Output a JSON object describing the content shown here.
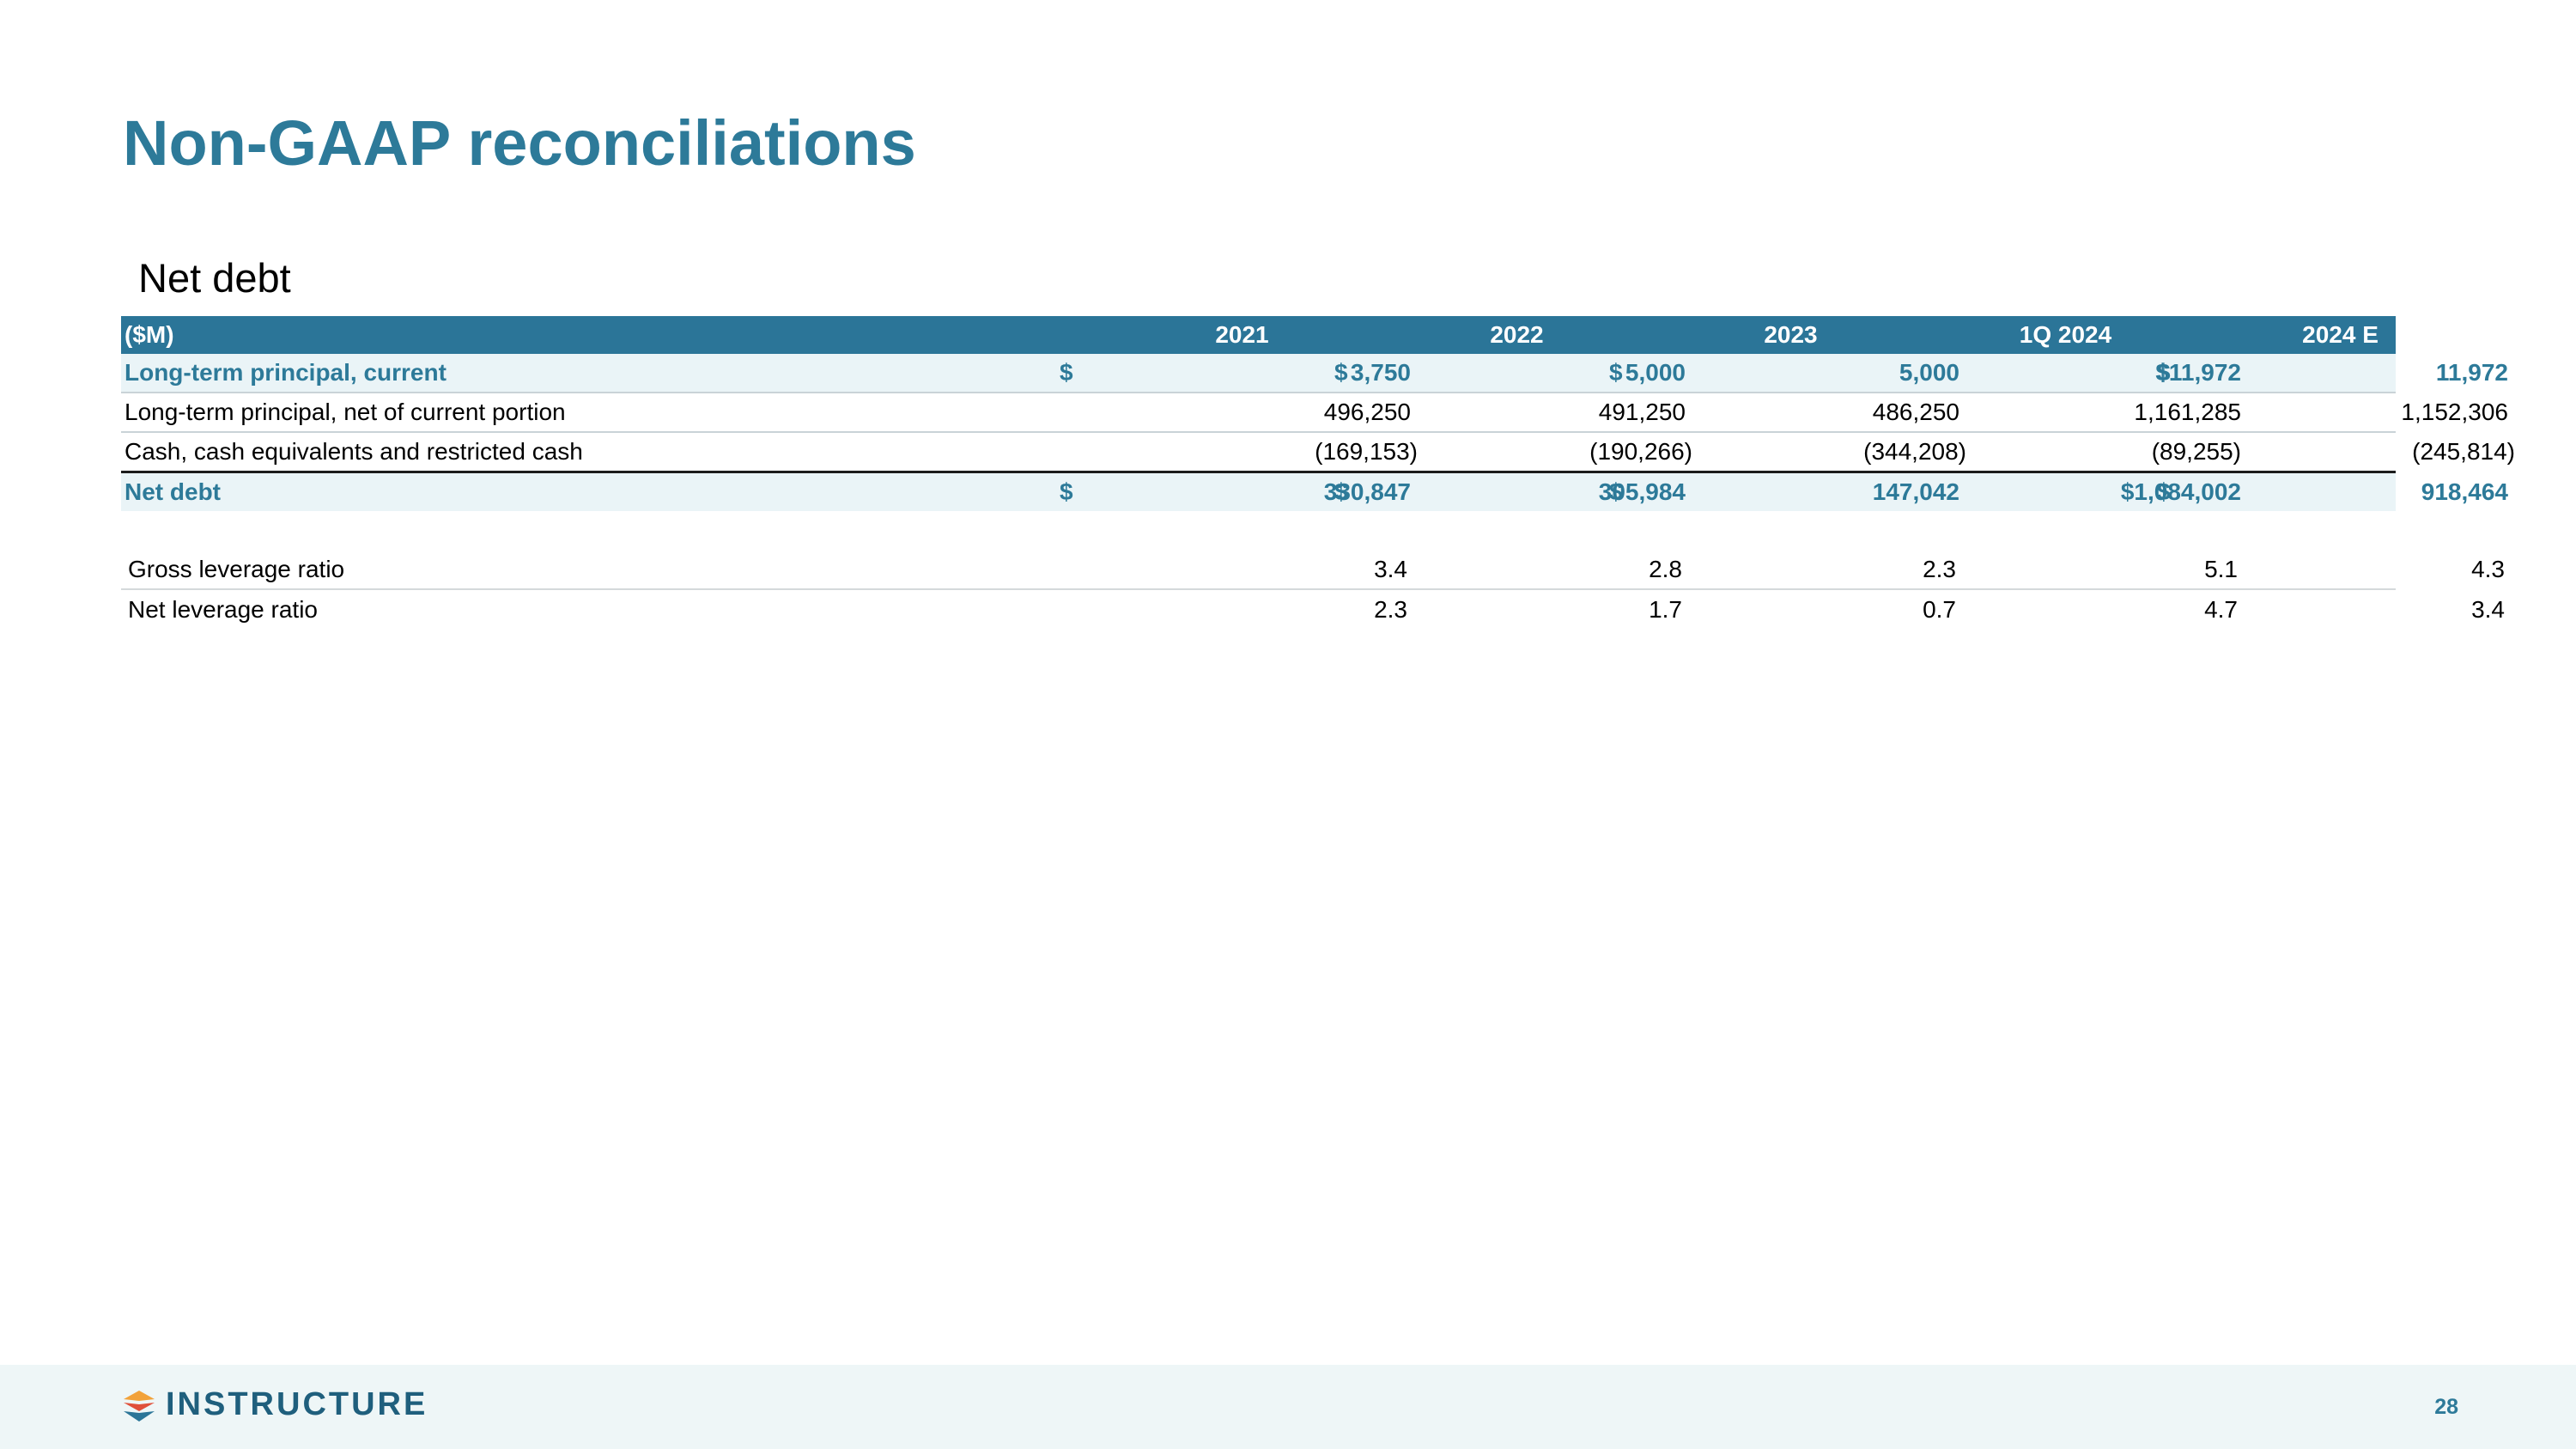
{
  "title": "Non-GAAP reconciliations",
  "section": "Net debt",
  "table": {
    "header": {
      "label": "($M)",
      "columns": [
        "2021",
        "2022",
        "2023",
        "1Q 2024",
        "2024 E"
      ]
    },
    "rows": [
      {
        "label": "Long-term principal, current",
        "cells": [
          {
            "sign": "$",
            "value": "3,750"
          },
          {
            "sign": "$",
            "value": "5,000"
          },
          {
            "sign": "$",
            "value": "5,000"
          },
          {
            "sign": "",
            "value": "$11,972"
          },
          {
            "sign": "$",
            "value": "11,972"
          }
        ]
      },
      {
        "label": "Long-term principal, net of current portion",
        "cells": [
          {
            "sign": "",
            "value": "496,250"
          },
          {
            "sign": "",
            "value": "491,250"
          },
          {
            "sign": "",
            "value": "486,250"
          },
          {
            "sign": "",
            "value": "1,161,285"
          },
          {
            "sign": "",
            "value": "1,152,306"
          }
        ]
      },
      {
        "label": "Cash, cash equivalents and restricted cash",
        "cells": [
          {
            "sign": "",
            "value": "(169,153)"
          },
          {
            "sign": "",
            "value": "(190,266)"
          },
          {
            "sign": "",
            "value": "(344,208)"
          },
          {
            "sign": "",
            "value": "(89,255)"
          },
          {
            "sign": "",
            "value": "(245,814)"
          }
        ]
      },
      {
        "label": "Net debt",
        "cells": [
          {
            "sign": "$",
            "value": "330,847"
          },
          {
            "sign": "$",
            "value": "305,984"
          },
          {
            "sign": "$",
            "value": "147,042"
          },
          {
            "sign": "",
            "value": "$1,084,002"
          },
          {
            "sign": "$",
            "value": "918,464"
          }
        ]
      }
    ]
  },
  "ratios": [
    {
      "label": "Gross leverage ratio",
      "values": [
        "3.4",
        "2.8",
        "2.3",
        "5.1",
        "4.3"
      ]
    },
    {
      "label": "Net leverage ratio",
      "values": [
        "2.3",
        "1.7",
        "0.7",
        "4.7",
        "3.4"
      ]
    }
  ],
  "footer": {
    "brand": "INSTRUCTURE",
    "page_number": "28"
  },
  "colors": {
    "accent": "#2d7a99",
    "header_bg": "#2b7598",
    "highlight_row_bg": "#eaf4f7",
    "footer_bg": "#eef6f7"
  }
}
